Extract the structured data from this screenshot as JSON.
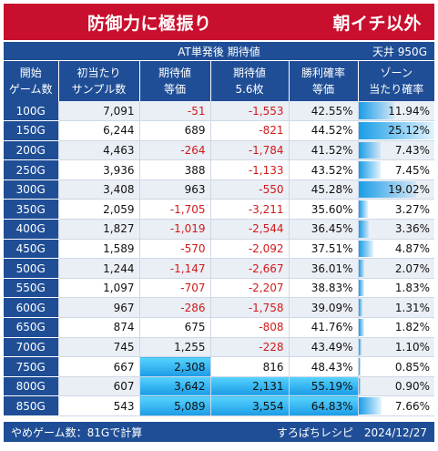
{
  "title": {
    "left": "防御力に極振り",
    "right": "朝イチ以外"
  },
  "subheader": {
    "center": "AT単発後 期待値",
    "right": "天井 950G"
  },
  "columns": [
    [
      "開始",
      "ゲーム数"
    ],
    [
      "初当たり",
      "サンプル数"
    ],
    [
      "期待値",
      "等価"
    ],
    [
      "期待値",
      "5.6枚"
    ],
    [
      "勝利確率",
      "等価"
    ],
    [
      "ゾーン",
      "当たり確率"
    ]
  ],
  "rows": [
    [
      "100G",
      "7,091",
      "-51",
      "-1,553",
      "42.55%",
      "11.94%"
    ],
    [
      "150G",
      "6,244",
      "689",
      "-821",
      "44.52%",
      "25.12%"
    ],
    [
      "200G",
      "4,463",
      "-264",
      "-1,784",
      "41.52%",
      "7.43%"
    ],
    [
      "250G",
      "3,936",
      "388",
      "-1,133",
      "43.52%",
      "7.45%"
    ],
    [
      "300G",
      "3,408",
      "963",
      "-550",
      "45.28%",
      "19.02%"
    ],
    [
      "350G",
      "2,059",
      "-1,705",
      "-3,211",
      "35.60%",
      "3.27%"
    ],
    [
      "400G",
      "1,827",
      "-1,019",
      "-2,544",
      "36.45%",
      "3.36%"
    ],
    [
      "450G",
      "1,589",
      "-570",
      "-2,092",
      "37.51%",
      "4.87%"
    ],
    [
      "500G",
      "1,244",
      "-1,147",
      "-2,667",
      "36.01%",
      "2.07%"
    ],
    [
      "550G",
      "1,097",
      "-707",
      "-2,207",
      "38.83%",
      "1.83%"
    ],
    [
      "600G",
      "967",
      "-286",
      "-1,758",
      "39.09%",
      "1.31%"
    ],
    [
      "650G",
      "874",
      "675",
      "-808",
      "41.76%",
      "1.82%"
    ],
    [
      "700G",
      "745",
      "1,255",
      "-228",
      "43.49%",
      "1.10%"
    ],
    [
      "750G",
      "667",
      "2,308",
      "816",
      "48.43%",
      "0.85%"
    ],
    [
      "800G",
      "607",
      "3,642",
      "2,131",
      "55.19%",
      "0.90%"
    ],
    [
      "850G",
      "543",
      "5,089",
      "3,554",
      "64.83%",
      "7.66%"
    ]
  ],
  "highlighted_cells": {
    "expected_equal": [
      13,
      14,
      15
    ],
    "expected_56": [
      14,
      15
    ],
    "win_rate": [
      14,
      15
    ]
  },
  "footer": {
    "left": "やめゲーム数：81Gで計算",
    "right": "すろぱちレシピ　2024/12/27"
  },
  "colors": {
    "title_bg": "#c8102e",
    "header_bg": "#1f4e96",
    "negative": "#d11a1a",
    "highlight": "#1b9be5"
  }
}
